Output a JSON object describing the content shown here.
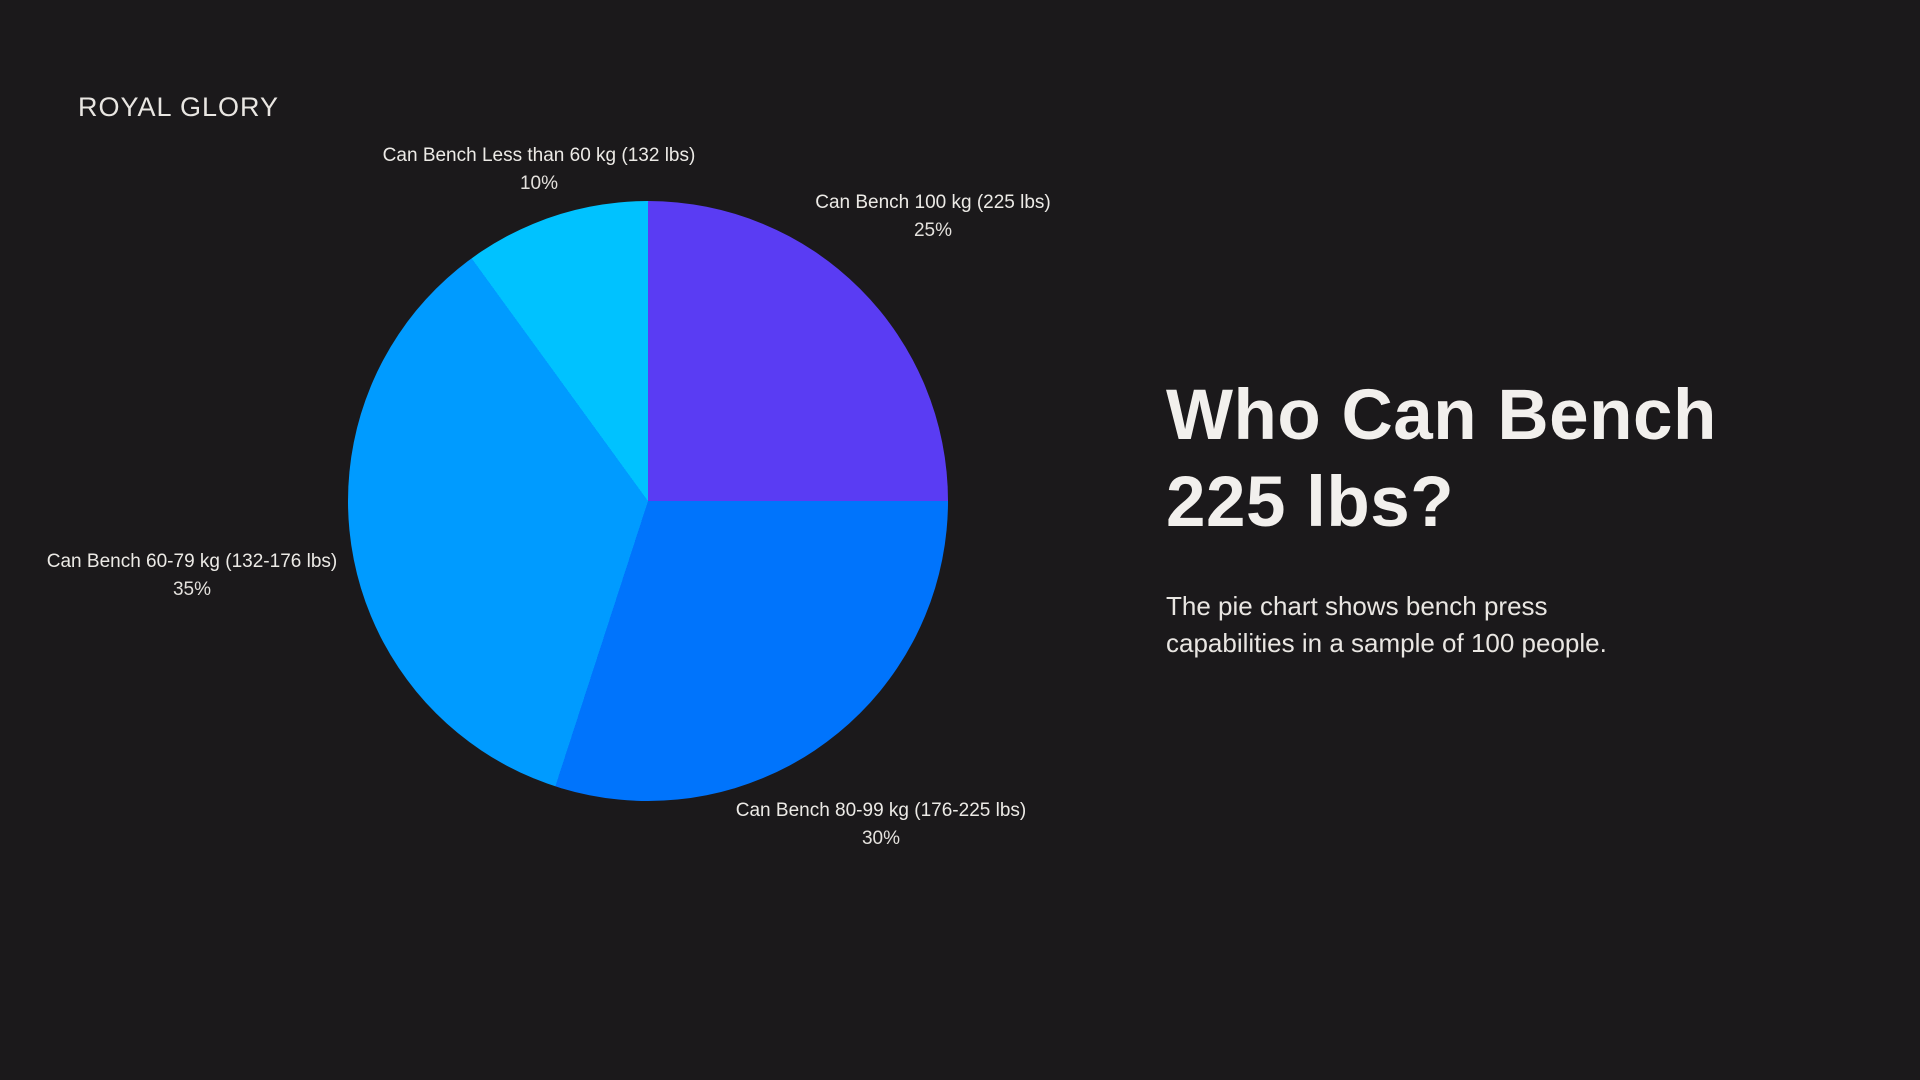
{
  "brand": "ROYAL GLORY",
  "main": {
    "title": "Who Can Bench 225 lbs?",
    "description": "The pie chart shows bench press capabilities in a sample of 100 people."
  },
  "chart_data": {
    "type": "pie",
    "title": "Who Can Bench 225 lbs?",
    "unit": "%",
    "start_angle_deg": 0,
    "direction": "clockwise",
    "legend_position": "none",
    "label_style": "outside, category name with percent below",
    "background_color": "#1b191b",
    "slices": [
      {
        "label": "Can Bench 100 kg (225 lbs)",
        "value": 25,
        "color": "#5a3cf3"
      },
      {
        "label": "Can Bench 80-99 kg (176-225 lbs)",
        "value": 30,
        "color": "#0074fc"
      },
      {
        "label": "Can Bench 60-79 kg (132-176 lbs)",
        "value": 35,
        "color": "#009bff"
      },
      {
        "label": "Can Bench Less than 60 kg (132 lbs)",
        "value": 10,
        "color": "#00c2ff"
      }
    ]
  }
}
